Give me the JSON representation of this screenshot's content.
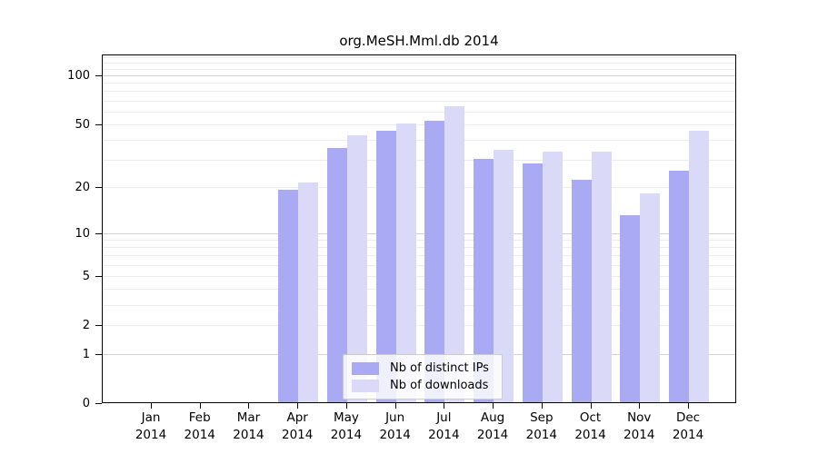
{
  "title": "org.MeSH.Mml.db 2014",
  "colors": {
    "distinct_ips": "#a9a9f4",
    "downloads": "#dadaf8",
    "grid_major": "#d2d2d2",
    "grid_minor": "#ececec",
    "axis": "#000000",
    "legend_border": "#cccccc"
  },
  "legend": {
    "items": [
      {
        "label": "Nb of distinct IPs",
        "color_key": "distinct_ips"
      },
      {
        "label": "Nb of downloads",
        "color_key": "downloads"
      }
    ]
  },
  "chart_data": {
    "type": "bar",
    "title": "org.MeSH.Mml.db 2014",
    "categories": [
      "Jan 2014",
      "Feb 2014",
      "Mar 2014",
      "Apr 2014",
      "May 2014",
      "Jun 2014",
      "Jul 2014",
      "Aug 2014",
      "Sep 2014",
      "Oct 2014",
      "Nov 2014",
      "Dec 2014"
    ],
    "series": [
      {
        "name": "Nb of distinct IPs",
        "color": "#a9a9f4",
        "values": [
          0,
          0,
          0,
          19,
          35,
          45,
          52,
          30,
          28,
          22,
          13,
          25
        ]
      },
      {
        "name": "Nb of downloads",
        "color": "#dadaf8",
        "values": [
          0,
          0,
          0,
          21,
          42,
          50,
          64,
          34,
          33,
          33,
          18,
          45
        ]
      }
    ],
    "yscale": "log1p",
    "yticks": [
      0,
      1,
      2,
      5,
      10,
      20,
      50,
      100
    ],
    "ylim": [
      0,
      133
    ],
    "xlabel": "",
    "ylabel": "",
    "grid": true,
    "legend_position": "inside-bottom-center"
  }
}
